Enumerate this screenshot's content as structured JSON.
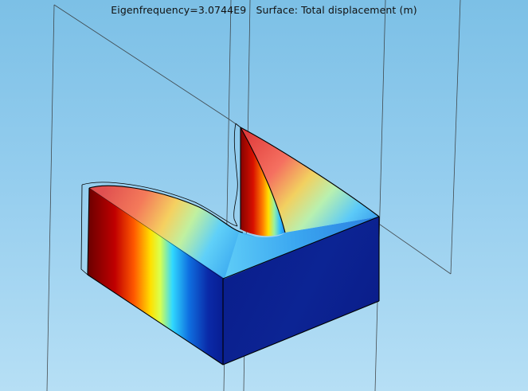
{
  "plot": {
    "title": "Eigenfrequency=3.0744E9   Surface: Total displacement (m)",
    "colors": {
      "background_top": "#7cc0e6",
      "background_bottom": "#b6dff5",
      "colormap": [
        "#6a0000",
        "#b00000",
        "#e52b00",
        "#ff7a00",
        "#ffd200",
        "#ffff40",
        "#7ff0a0",
        "#1fd0ff",
        "#0f6fe0",
        "#0a2aa8",
        "#061a8a"
      ],
      "low_value_color": "#0c1f8e",
      "edge_color": "#000000"
    }
  }
}
